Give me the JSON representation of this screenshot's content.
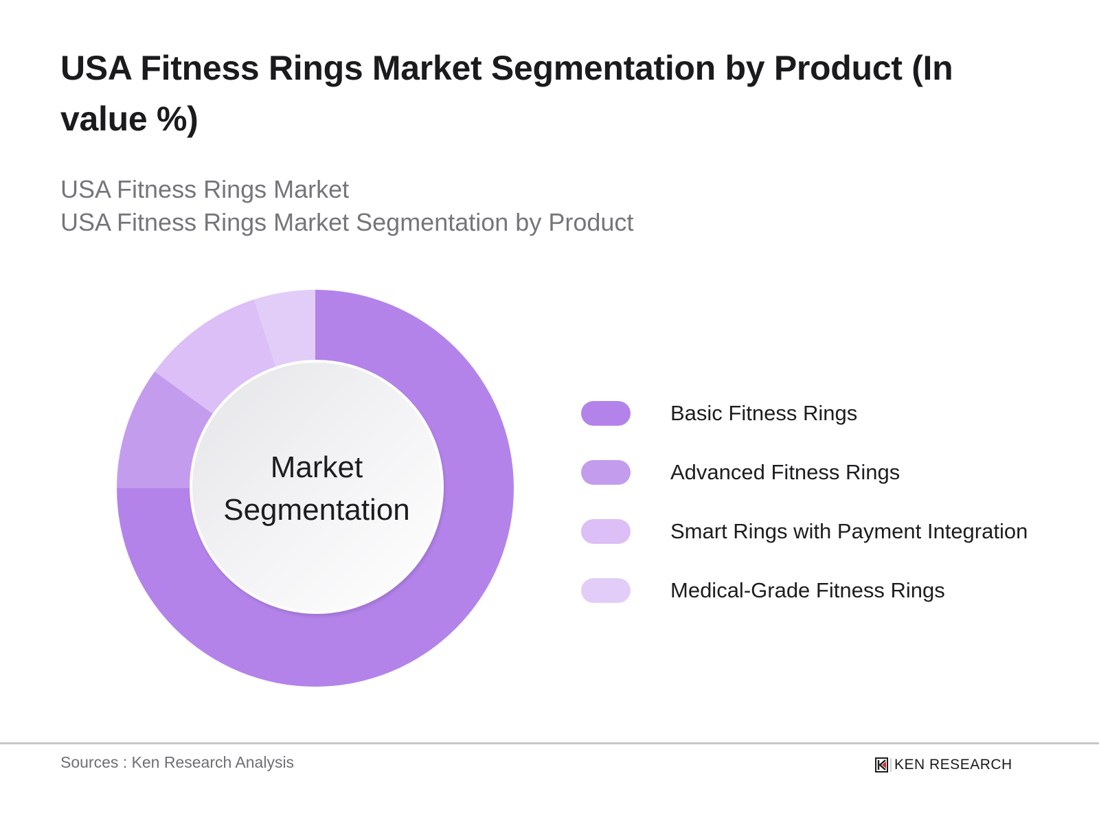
{
  "header": {
    "title": "USA Fitness Rings Market Segmentation by Product (In value %)",
    "subtitle_lines": [
      "USA Fitness Rings Market",
      "USA Fitness Rings Market Segmentation by Product"
    ]
  },
  "chart": {
    "center_label_line1": "Market",
    "center_label_line2": "Segmentation",
    "legend": [
      {
        "label": "Basic Fitness Rings",
        "color": "#b383ea"
      },
      {
        "label": "Advanced Fitness Rings",
        "color": "#c49cee"
      },
      {
        "label": "Smart Rings with Payment Integration",
        "color": "#dbbff6"
      },
      {
        "label": "Medical-Grade Fitness Rings",
        "color": "#e2cdf8"
      }
    ]
  },
  "footer": {
    "source": "Sources : Ken Research Analysis",
    "logo_text": "KEN RESEARCH",
    "logo_icon": "ken-research-logo-icon"
  },
  "chart_data": {
    "type": "pie",
    "subtype": "donut",
    "title": "USA Fitness Rings Market Segmentation by Product (In value %)",
    "subtitle": "USA Fitness Rings Market / USA Fitness Rings Market Segmentation by Product",
    "center_label": "Market Segmentation",
    "categories": [
      "Basic Fitness Rings",
      "Advanced Fitness Rings",
      "Smart Rings with Payment Integration",
      "Medical-Grade Fitness Rings"
    ],
    "values": [
      75,
      10,
      10,
      5
    ],
    "unit": "%",
    "colors": [
      "#b383ea",
      "#c49cee",
      "#dbbff6",
      "#e2cdf8"
    ],
    "start_angle_deg": 0,
    "direction": "clockwise",
    "legend_position": "right",
    "data_labels_shown": false,
    "source": "Sources : Ken Research Analysis"
  }
}
